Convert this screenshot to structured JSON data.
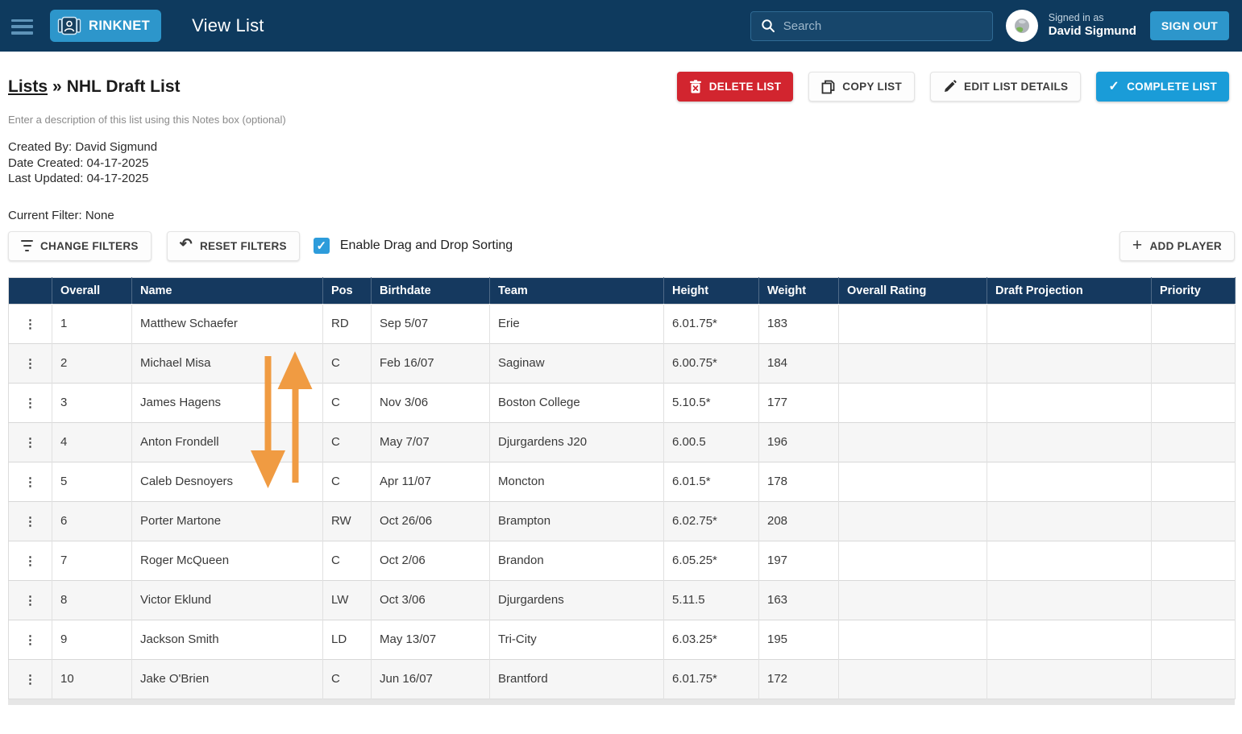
{
  "colors": {
    "topbar_bg": "#0E3A5E",
    "accent_blue": "#2D96CB",
    "primary_blue": "#1A9CD8",
    "danger_red": "#D2252F",
    "table_header_bg": "#15395F",
    "checkbox_blue": "#2D9CDB",
    "arrow_orange": "#F09B42"
  },
  "topbar": {
    "brand": "RINKNET",
    "title": "View List",
    "search_placeholder": "Search",
    "signed_in_label": "Signed in as",
    "user_name": "David Sigmund",
    "sign_out_label": "SIGN OUT"
  },
  "header": {
    "breadcrumb_root": "Lists",
    "breadcrumb_separator": "»",
    "list_title": "NHL Draft List",
    "notes_placeholder": "Enter a description of this list using this Notes box (optional)",
    "created_by": "Created By: David Sigmund",
    "date_created": "Date Created: 04-17-2025",
    "last_updated": "Last Updated: 04-17-2025"
  },
  "actions": {
    "delete_list": "DELETE LIST",
    "copy_list": "COPY LIST",
    "edit_list_details": "EDIT LIST DETAILS",
    "complete_list": "COMPLETE LIST"
  },
  "filters": {
    "current_filter_label": "Current Filter: None",
    "change_filters": "CHANGE FILTERS",
    "reset_filters": "RESET FILTERS",
    "drag_drop_label": "Enable Drag and Drop Sorting",
    "drag_drop_checked": true,
    "add_player": "ADD PLAYER"
  },
  "table": {
    "headers": [
      "Overall",
      "Name",
      "Pos",
      "Birthdate",
      "Team",
      "Height",
      "Weight",
      "Overall Rating",
      "Draft Projection",
      "Priority"
    ],
    "row_fields": [
      "overall",
      "name",
      "pos",
      "birthdate",
      "team",
      "height",
      "weight",
      "overall_rating",
      "draft_projection",
      "priority"
    ],
    "rows": [
      {
        "overall": "1",
        "name": "Matthew Schaefer",
        "pos": "RD",
        "birthdate": "Sep 5/07",
        "team": "Erie",
        "height": "6.01.75*",
        "weight": "183",
        "overall_rating": "",
        "draft_projection": "",
        "priority": ""
      },
      {
        "overall": "2",
        "name": "Michael Misa",
        "pos": "C",
        "birthdate": "Feb 16/07",
        "team": "Saginaw",
        "height": "6.00.75*",
        "weight": "184",
        "overall_rating": "",
        "draft_projection": "",
        "priority": ""
      },
      {
        "overall": "3",
        "name": "James Hagens",
        "pos": "C",
        "birthdate": "Nov 3/06",
        "team": "Boston College",
        "height": "5.10.5*",
        "weight": "177",
        "overall_rating": "",
        "draft_projection": "",
        "priority": ""
      },
      {
        "overall": "4",
        "name": "Anton Frondell",
        "pos": "C",
        "birthdate": "May 7/07",
        "team": "Djurgardens J20",
        "height": "6.00.5",
        "weight": "196",
        "overall_rating": "",
        "draft_projection": "",
        "priority": ""
      },
      {
        "overall": "5",
        "name": "Caleb Desnoyers",
        "pos": "C",
        "birthdate": "Apr 11/07",
        "team": "Moncton",
        "height": "6.01.5*",
        "weight": "178",
        "overall_rating": "",
        "draft_projection": "",
        "priority": ""
      },
      {
        "overall": "6",
        "name": "Porter Martone",
        "pos": "RW",
        "birthdate": "Oct 26/06",
        "team": "Brampton",
        "height": "6.02.75*",
        "weight": "208",
        "overall_rating": "",
        "draft_projection": "",
        "priority": ""
      },
      {
        "overall": "7",
        "name": "Roger McQueen",
        "pos": "C",
        "birthdate": "Oct 2/06",
        "team": "Brandon",
        "height": "6.05.25*",
        "weight": "197",
        "overall_rating": "",
        "draft_projection": "",
        "priority": ""
      },
      {
        "overall": "8",
        "name": "Victor Eklund",
        "pos": "LW",
        "birthdate": "Oct 3/06",
        "team": "Djurgardens",
        "height": "5.11.5",
        "weight": "163",
        "overall_rating": "",
        "draft_projection": "",
        "priority": ""
      },
      {
        "overall": "9",
        "name": "Jackson Smith",
        "pos": "LD",
        "birthdate": "May 13/07",
        "team": "Tri-City",
        "height": "6.03.25*",
        "weight": "195",
        "overall_rating": "",
        "draft_projection": "",
        "priority": ""
      },
      {
        "overall": "10",
        "name": "Jake O'Brien",
        "pos": "C",
        "birthdate": "Jun 16/07",
        "team": "Brantford",
        "height": "6.01.75*",
        "weight": "172",
        "overall_rating": "",
        "draft_projection": "",
        "priority": ""
      }
    ]
  }
}
